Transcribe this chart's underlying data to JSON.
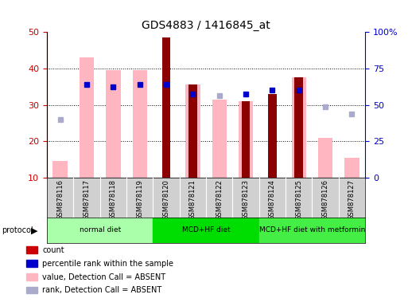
{
  "title": "GDS4883 / 1416845_at",
  "samples": [
    "GSM878116",
    "GSM878117",
    "GSM878118",
    "GSM878119",
    "GSM878120",
    "GSM878121",
    "GSM878122",
    "GSM878123",
    "GSM878124",
    "GSM878125",
    "GSM878126",
    "GSM878127"
  ],
  "count_bars": [
    null,
    null,
    null,
    null,
    48.5,
    35.5,
    null,
    31.0,
    33.0,
    37.5,
    null,
    null
  ],
  "pink_bars": [
    14.5,
    43.0,
    39.5,
    39.5,
    null,
    35.5,
    31.5,
    31.0,
    null,
    37.5,
    21.0,
    15.5
  ],
  "blue_squares_left": [
    null,
    35.5,
    35.0,
    35.5,
    35.5,
    33.0,
    null,
    33.0,
    34.0,
    34.0,
    null,
    null
  ],
  "light_blue_squares_left": [
    26.0,
    null,
    null,
    null,
    null,
    null,
    32.5,
    null,
    null,
    null,
    29.5,
    27.5
  ],
  "left_ylim": [
    10,
    50
  ],
  "left_yticks": [
    10,
    20,
    30,
    40,
    50
  ],
  "right_ylim": [
    0,
    100
  ],
  "right_yticks": [
    0,
    25,
    50,
    75,
    100
  ],
  "right_yticklabels": [
    "0",
    "25",
    "50",
    "75",
    "100%"
  ],
  "left_color": "#CC0000",
  "right_color": "#0000CC",
  "pink_color": "#FFB6C1",
  "light_blue_color": "#AAAACC",
  "dark_red_color": "#8B0000",
  "proto_colors": [
    "#AAFFAA",
    "#00DD00",
    "#44EE44"
  ],
  "proto_ranges": [
    [
      0,
      3
    ],
    [
      4,
      7
    ],
    [
      8,
      11
    ]
  ],
  "proto_labels": [
    "normal diet",
    "MCD+HF diet",
    "MCD+HF diet with metformin"
  ],
  "legend": [
    {
      "color": "#CC0000",
      "label": "count"
    },
    {
      "color": "#0000CC",
      "label": "percentile rank within the sample"
    },
    {
      "color": "#FFB6C1",
      "label": "value, Detection Call = ABSENT"
    },
    {
      "color": "#AAAACC",
      "label": "rank, Detection Call = ABSENT"
    }
  ]
}
